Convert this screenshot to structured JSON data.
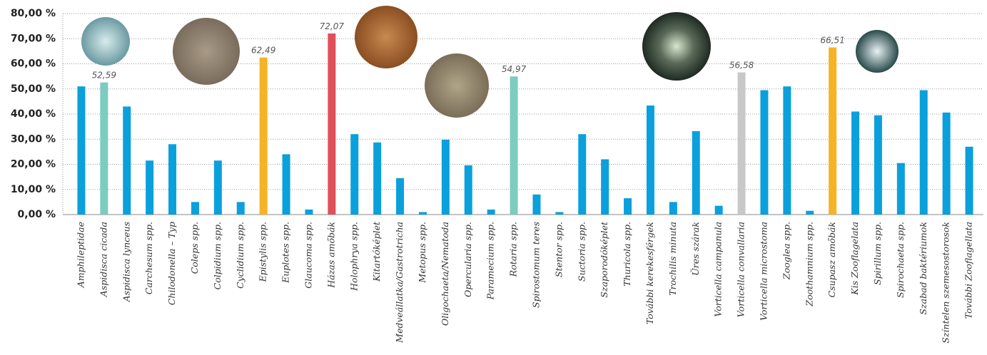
{
  "chart_data": {
    "type": "bar",
    "categories": [
      "Amphileptidae",
      "Aspidisca cicada",
      "Aspidisca lynceus",
      "Carchesum spp.",
      "Chilodonella – Typ",
      "Coleps spp.",
      "Colpidium spp.",
      "Cyclidium spp.",
      "Epistylis spp.",
      "Euplotes spp.",
      "Glaucoma spp.",
      "Házas amőbák",
      "Holophrya spp.",
      "Kitartóképlet",
      "Medveállatka/Gastrotricha",
      "Metopus spp.",
      "Oligochaeta/Nematoda",
      "Opercularia spp.",
      "Paramecium spp.",
      "Rotaria spp.",
      "Spirostomum teres",
      "Stentor spp.",
      "Suctoria spp.",
      "Szaporodóképlet",
      "Thuricola spp.",
      "További kerekesférgek",
      "Trochilis minuta",
      "Üres szárak",
      "Vorticella campanula",
      "Vorticella convallaria",
      "Vorticella microstoma",
      "Zooglea spp.",
      "Zoothamnium spp.",
      "Csupasz amőbák",
      "Kis Zooflagelata",
      "Spirillum spp.",
      "Spirochaeta spp.",
      "Szabad baktériumok",
      "Színtelen szemesostorosok",
      "További Zooflagellata"
    ],
    "values": [
      51,
      52.59,
      43,
      21.5,
      28,
      5,
      21.5,
      5,
      62.49,
      24,
      2,
      72.07,
      32,
      28.7,
      14.5,
      1,
      29.8,
      19.6,
      2,
      54.97,
      8,
      1,
      32,
      22,
      6.5,
      43.4,
      5,
      33.2,
      3.5,
      56.58,
      49.5,
      51,
      1.5,
      66.51,
      41,
      39.5,
      20.5,
      49.5,
      40.6,
      27
    ],
    "value_labels": [
      null,
      "52,59",
      null,
      null,
      null,
      null,
      null,
      null,
      "62,49",
      null,
      null,
      "72,07",
      null,
      null,
      null,
      null,
      null,
      null,
      null,
      "54,97",
      null,
      null,
      null,
      null,
      null,
      null,
      null,
      null,
      null,
      "56,58",
      null,
      null,
      null,
      "66,51",
      null,
      null,
      null,
      null,
      null,
      null
    ],
    "colors": [
      "#0aa0dc",
      "#7ecbbf",
      "#0aa0dc",
      "#0aa0dc",
      "#0aa0dc",
      "#0aa0dc",
      "#0aa0dc",
      "#0aa0dc",
      "#f5b325",
      "#0aa0dc",
      "#0aa0dc",
      "#e0505a",
      "#0aa0dc",
      "#0aa0dc",
      "#0aa0dc",
      "#0aa0dc",
      "#0aa0dc",
      "#0aa0dc",
      "#0aa0dc",
      "#7ecbbf",
      "#0aa0dc",
      "#0aa0dc",
      "#0aa0dc",
      "#0aa0dc",
      "#0aa0dc",
      "#0aa0dc",
      "#0aa0dc",
      "#0aa0dc",
      "#0aa0dc",
      "#c8c8c8",
      "#0aa0dc",
      "#0aa0dc",
      "#0aa0dc",
      "#f5b325",
      "#0aa0dc",
      "#0aa0dc",
      "#0aa0dc",
      "#0aa0dc",
      "#0aa0dc",
      "#0aa0dc"
    ],
    "ylim": [
      0,
      80
    ],
    "yticks": [
      {
        "value": 0,
        "label": "0,00 %"
      },
      {
        "value": 10,
        "label": "10,00 %"
      },
      {
        "value": 20,
        "label": "20,00 %"
      },
      {
        "value": 30,
        "label": "30,00 %"
      },
      {
        "value": 40,
        "label": "40,00 %"
      },
      {
        "value": 50,
        "label": "50,00 %"
      },
      {
        "value": 60,
        "label": "60,00 %"
      },
      {
        "value": 70,
        "label": "70,00 %"
      },
      {
        "value": 80,
        "label": "80,00 %"
      }
    ],
    "grid": true
  }
}
